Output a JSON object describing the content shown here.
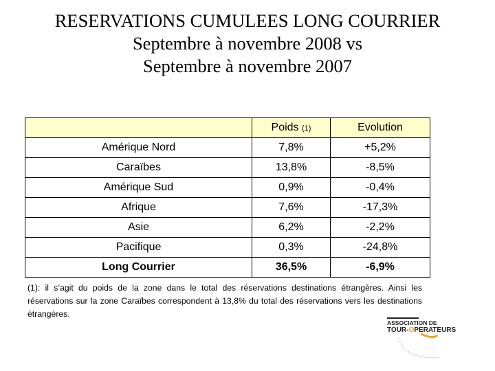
{
  "title": {
    "line1": "RESERVATIONS CUMULEES LONG COURRIER",
    "line2": "Septembre à novembre 2008 vs",
    "line3": "Septembre à novembre 2007"
  },
  "table": {
    "headers": {
      "col1": "",
      "col2": "Poids",
      "col2_note": "(1)",
      "col3": "Evolution"
    },
    "rows": [
      {
        "zone": "Amérique Nord",
        "poids": "7,8%",
        "evolution": "+5,2%"
      },
      {
        "zone": "Caraïbes",
        "poids": "13,8%",
        "evolution": "-8,5%"
      },
      {
        "zone": "Amérique Sud",
        "poids": "0,9%",
        "evolution": "-0,4%"
      },
      {
        "zone": "Afrique",
        "poids": "7,6%",
        "evolution": "-17,3%"
      },
      {
        "zone": "Asie",
        "poids": "6,2%",
        "evolution": "-2,2%"
      },
      {
        "zone": "Pacifique",
        "poids": "0,3%",
        "evolution": "-24,8%"
      }
    ],
    "total": {
      "zone": "Long Courrier",
      "poids": "36,5%",
      "evolution": "-6,9%"
    },
    "header_color": "#ffffcc"
  },
  "footnote": "(1): il s’agit du poids de la zone dans le total des réservations destinations étrangères. Ainsi les réservations sur la zone Caraïbes correspondent à 13,8% du total des réservations vers les destinations étrangères.",
  "logo": {
    "line1": "ASSOCIATION DE",
    "line2_a": "TOUR-",
    "line2_b": "O",
    "line2_c": "PERATEURS",
    "accent_color": "#f2a51a"
  }
}
